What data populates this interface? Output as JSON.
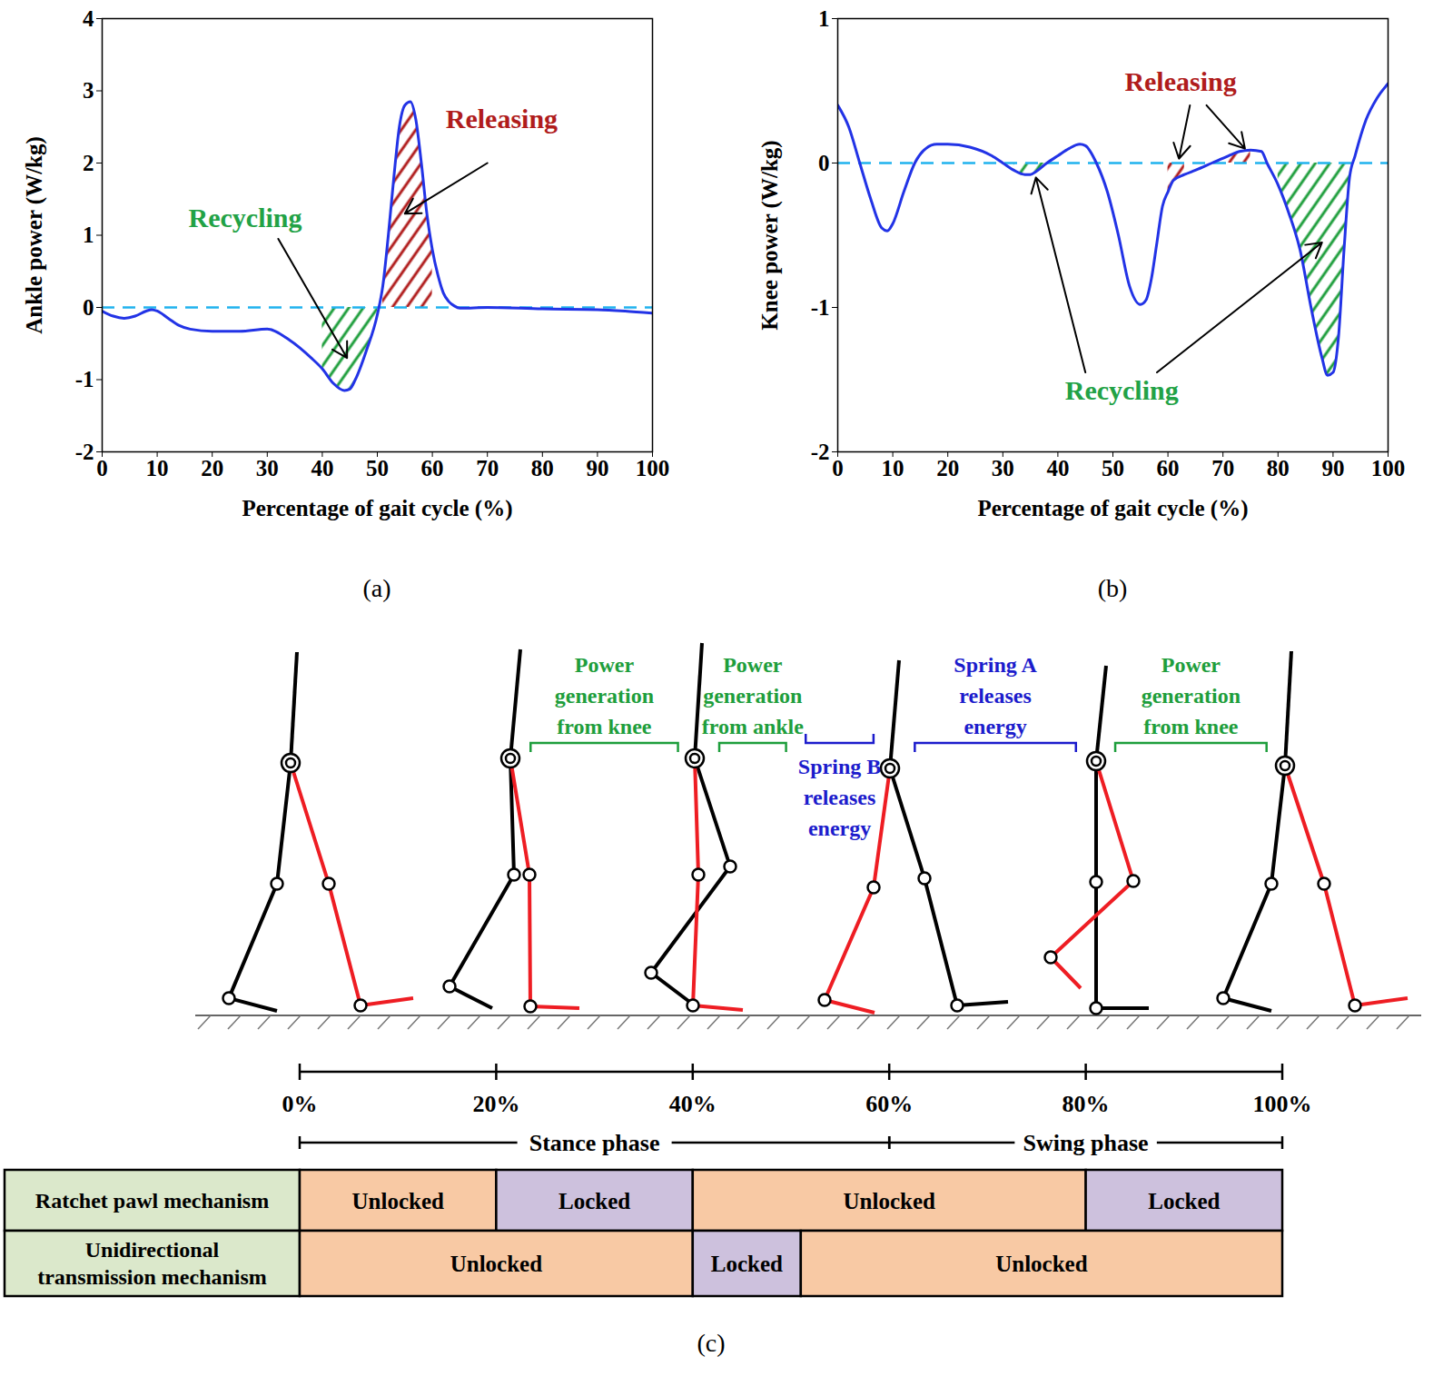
{
  "chart_data": [
    {
      "type": "line",
      "caption": "(a)",
      "x_label": "Percentage of gait cycle (%)",
      "y_label": "Ankle power (W/kg)",
      "x": [
        0,
        2,
        4,
        6,
        8,
        9,
        10,
        12,
        14,
        16,
        20,
        25,
        30,
        34,
        38,
        40,
        42,
        44,
        45,
        46,
        48,
        50,
        51,
        52,
        53,
        54,
        55,
        56,
        57,
        58,
        59,
        60,
        61,
        62,
        63,
        64,
        65,
        70,
        80,
        90,
        95,
        100
      ],
      "values": [
        -0.05,
        -0.12,
        -0.15,
        -0.12,
        -0.05,
        -0.03,
        -0.05,
        -0.15,
        -0.25,
        -0.3,
        -0.33,
        -0.33,
        -0.3,
        -0.45,
        -0.7,
        -0.85,
        -1.05,
        -1.15,
        -1.13,
        -1.0,
        -0.6,
        -0.1,
        0.3,
        1.0,
        1.8,
        2.5,
        2.8,
        2.85,
        2.6,
        2.0,
        1.3,
        0.8,
        0.45,
        0.2,
        0.08,
        0.02,
        -0.01,
        0.0,
        -0.02,
        -0.03,
        -0.05,
        -0.08
      ],
      "color": "#2233e6",
      "xlim": [
        0,
        100
      ],
      "xticks": [
        0,
        10,
        20,
        30,
        40,
        50,
        60,
        70,
        80,
        90,
        100
      ],
      "ylim": [
        -2,
        4
      ],
      "yticks": [
        -2,
        -1,
        0,
        1,
        2,
        3,
        4
      ],
      "reference_lines": [
        {
          "y": 0,
          "color": "#20b2ee",
          "line_style": "dashed"
        }
      ],
      "regions": [
        {
          "from": 40,
          "to": 50,
          "color": "#1e9e3c"
        },
        {
          "from": 51,
          "to": 60,
          "color": "#b01c1c"
        }
      ],
      "annotations": [
        {
          "text": "Recycling",
          "x": 26,
          "y": 1.23,
          "color": "#22a246",
          "arrows": [
            {
              "x1": 32,
              "y1": 0.95,
              "x2": 44.5,
              "y2": -0.7
            }
          ]
        },
        {
          "text": "Releasing",
          "x": 72.6,
          "y": 2.6,
          "color": "#b01c1c",
          "arrows": [
            {
              "x1": 70,
              "y1": 2.0,
              "x2": 55,
              "y2": 1.3
            }
          ]
        }
      ]
    },
    {
      "type": "line",
      "caption": "(b)",
      "x_label": "Percentage of gait cycle (%)",
      "y_label": "Knee power (W/kg)",
      "x": [
        0,
        2,
        4,
        6,
        8,
        9,
        10,
        12,
        14,
        16,
        18,
        20,
        24,
        28,
        30,
        32,
        34,
        35,
        36,
        38,
        40,
        42,
        44,
        45,
        47,
        49,
        51,
        53,
        55,
        56,
        57,
        58,
        59,
        60,
        61,
        63,
        65,
        68,
        71,
        73,
        75,
        77,
        78,
        80,
        82,
        84,
        86,
        88,
        89,
        90,
        91,
        92,
        93,
        94,
        96,
        98,
        100
      ],
      "values": [
        0.4,
        0.25,
        0.0,
        -0.25,
        -0.45,
        -0.47,
        -0.42,
        -0.2,
        0.0,
        0.1,
        0.13,
        0.13,
        0.11,
        0.05,
        0.0,
        -0.05,
        -0.08,
        -0.08,
        -0.06,
        0.0,
        0.05,
        0.1,
        0.13,
        0.12,
        0.0,
        -0.2,
        -0.5,
        -0.85,
        -0.98,
        -0.95,
        -0.8,
        -0.55,
        -0.3,
        -0.2,
        -0.12,
        -0.08,
        -0.05,
        0.0,
        0.05,
        0.08,
        0.09,
        0.08,
        0.0,
        -0.15,
        -0.35,
        -0.6,
        -1.0,
        -1.35,
        -1.47,
        -1.45,
        -1.2,
        -0.6,
        -0.1,
        0.05,
        0.3,
        0.45,
        0.55
      ],
      "color": "#2233e6",
      "xlim": [
        0,
        100
      ],
      "xticks": [
        0,
        10,
        20,
        30,
        40,
        50,
        60,
        70,
        80,
        90,
        100
      ],
      "ylim": [
        -2,
        1
      ],
      "yticks": [
        -2,
        -1,
        0,
        1
      ],
      "reference_lines": [
        {
          "y": 0,
          "color": "#20b2ee",
          "line_style": "dashed"
        }
      ],
      "regions": [
        {
          "from": 32,
          "to": 38,
          "color": "#1e9e3c"
        },
        {
          "from": 60,
          "to": 63,
          "color": "#b01c1c"
        },
        {
          "from": 71,
          "to": 75,
          "color": "#b01c1c"
        },
        {
          "from": 80,
          "to": 93,
          "color": "#1e9e3c"
        }
      ],
      "annotations": [
        {
          "text": "Releasing",
          "x": 62.3,
          "y": 0.56,
          "color": "#b01c1c",
          "arrows": [
            {
              "x1": 64,
              "y1": 0.4,
              "x2": 62,
              "y2": 0.03
            },
            {
              "x1": 67,
              "y1": 0.4,
              "x2": 74,
              "y2": 0.1
            }
          ]
        },
        {
          "text": "Recycling",
          "x": 51.6,
          "y": -1.58,
          "color": "#22a246",
          "arrows": [
            {
              "x1": 45,
              "y1": -1.45,
              "x2": 36,
              "y2": -0.1
            },
            {
              "x1": 58,
              "y1": -1.45,
              "x2": 88,
              "y2": -0.55
            }
          ]
        }
      ]
    }
  ],
  "diagram": {
    "caption": "(c)",
    "timeline": {
      "xlim": [
        0,
        100
      ],
      "ticks": [
        {
          "value": 0,
          "label": "0%"
        },
        {
          "value": 20,
          "label": "20%"
        },
        {
          "value": 40,
          "label": "40%"
        },
        {
          "value": 60,
          "label": "60%"
        },
        {
          "value": 80,
          "label": "80%"
        },
        {
          "value": 100,
          "label": "100%"
        }
      ]
    },
    "phases": [
      {
        "label": "Stance phase",
        "from": 0,
        "to": 60
      },
      {
        "label": "Swing phase",
        "from": 60,
        "to": 100
      }
    ],
    "annotations": [
      {
        "text": "Power generation from knee",
        "from": 23.5,
        "to": 38.5,
        "color": "#1e9e3c"
      },
      {
        "text": "Power generation from ankle",
        "from": 42.7,
        "to": 49.5,
        "color": "#1e9e3c"
      },
      {
        "text": "Spring B releases energy",
        "from": 51.5,
        "to": 58.4,
        "color": "#1c1ccc"
      },
      {
        "text": "Spring A releases energy",
        "from": 62.6,
        "to": 79,
        "color": "#1c1ccc"
      },
      {
        "text": "Power generation from knee",
        "from": 83,
        "to": 98.4,
        "color": "#1e9e3c"
      }
    ],
    "table": {
      "label_color": "#dbe8cb",
      "rows": [
        {
          "label": "Ratchet pawl mechanism",
          "segments": [
            {
              "label": "Unlocked",
              "from": 0,
              "to": 20,
              "color": "#f8c9a4"
            },
            {
              "label": "Locked",
              "from": 20,
              "to": 40,
              "color": "#cdc1dd"
            },
            {
              "label": "Unlocked",
              "from": 40,
              "to": 80,
              "color": "#f8c9a4"
            },
            {
              "label": "Locked",
              "from": 80,
              "to": 100,
              "color": "#cdc1dd"
            }
          ]
        },
        {
          "label": "Unidirectional transmission mechanism",
          "segments": [
            {
              "label": "Unlocked",
              "from": 0,
              "to": 40,
              "color": "#f8c9a4"
            },
            {
              "label": "Locked",
              "from": 40,
              "to": 51,
              "color": "#cdc1dd"
            },
            {
              "label": "Unlocked",
              "from": 51,
              "to": 100,
              "color": "#f8c9a4"
            }
          ]
        }
      ]
    }
  }
}
